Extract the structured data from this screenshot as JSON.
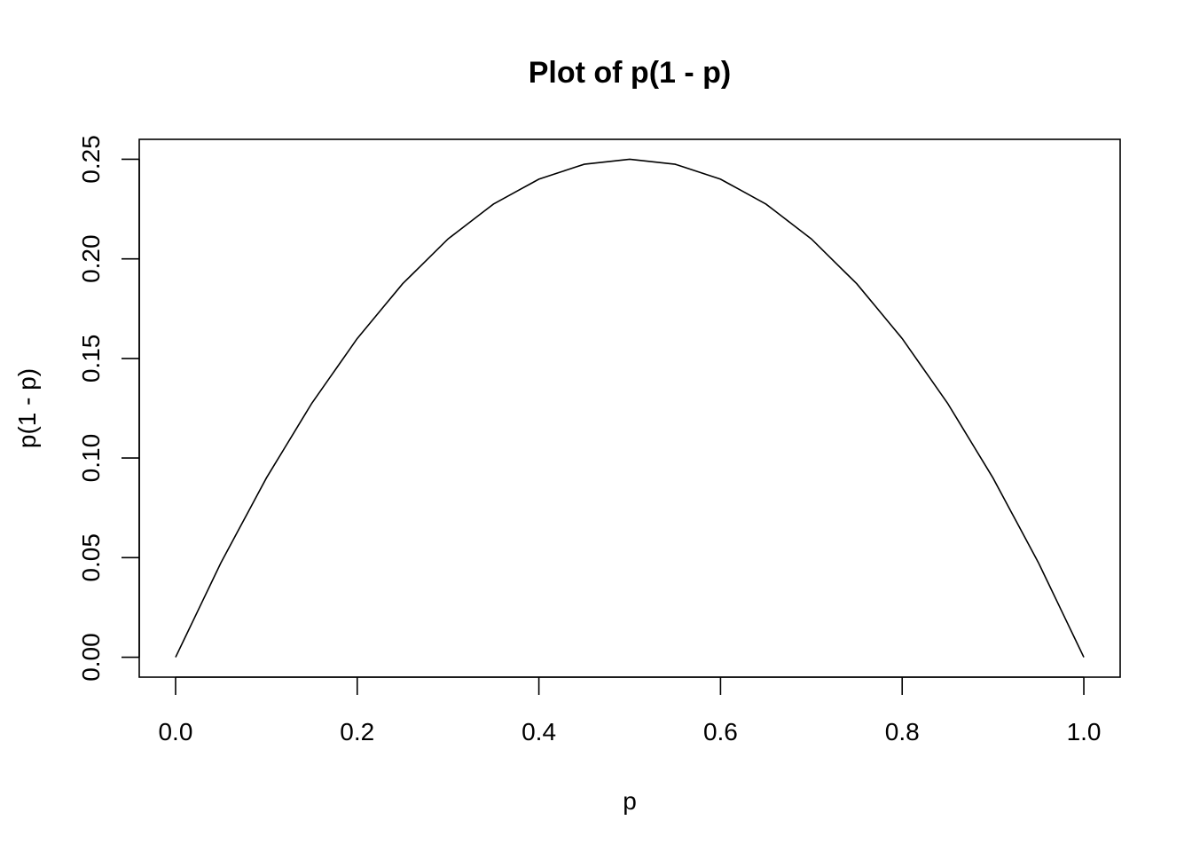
{
  "chart_data": {
    "type": "line",
    "title": "Plot of p(1 - p)",
    "xlabel": "p",
    "ylabel": "p(1 - p)",
    "xlim": [
      -0.04,
      1.04
    ],
    "ylim": [
      -0.01,
      0.26
    ],
    "x_ticks": [
      0.0,
      0.2,
      0.4,
      0.6,
      0.8,
      1.0
    ],
    "x_tick_labels": [
      "0.0",
      "0.2",
      "0.4",
      "0.6",
      "0.8",
      "1.0"
    ],
    "y_ticks": [
      0.0,
      0.05,
      0.1,
      0.15,
      0.2,
      0.25
    ],
    "y_tick_labels": [
      "0.00",
      "0.05",
      "0.10",
      "0.15",
      "0.20",
      "0.25"
    ],
    "grid": false,
    "series": [
      {
        "color": "#000000",
        "x": [
          0.0,
          0.05,
          0.1,
          0.15,
          0.2,
          0.25,
          0.3,
          0.35,
          0.4,
          0.45,
          0.5,
          0.55,
          0.6,
          0.65,
          0.7,
          0.75,
          0.8,
          0.85,
          0.9,
          0.95,
          1.0
        ],
        "y": [
          0.0,
          0.0475,
          0.09,
          0.1275,
          0.16,
          0.1875,
          0.21,
          0.2275,
          0.24,
          0.2475,
          0.25,
          0.2475,
          0.24,
          0.2275,
          0.21,
          0.1875,
          0.16,
          0.1275,
          0.09,
          0.0475,
          0.0
        ]
      }
    ]
  }
}
